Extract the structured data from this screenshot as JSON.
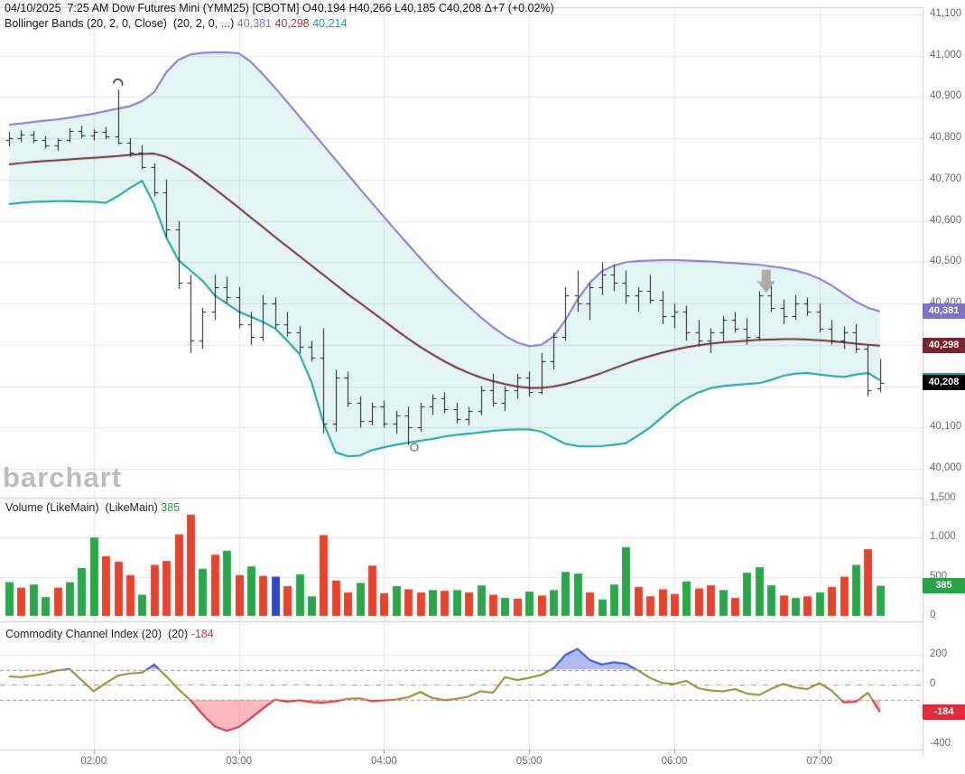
{
  "header": {
    "datetime": "04/10/2025  7:25 AM",
    "instrument": "Dow Futures Mini (YMM25) [CBOTM]",
    "ohlc_text": "O40,194 H40,266 L40,185 C40,208",
    "change_text": "Δ+7 (+0.02%)",
    "bollinger_label": "Bollinger Bands (20, 2, 0, Close)  (20, 2, 0, ...)",
    "bollinger_upper": "40,381",
    "bollinger_middle": "40,298",
    "bollinger_lower": "40,214"
  },
  "watermark": "barchart",
  "volume_panel": {
    "label": "Volume (LikeMain)  (LikeMain) ",
    "value": "385"
  },
  "cci_panel": {
    "label": "Commodity Channel Index (20)  (20) ",
    "value": "-184"
  },
  "axes": {
    "price": {
      "min": 40000,
      "max": 41100,
      "step": 100,
      "visible_ticks": [
        {
          "v": 41100,
          "label": "41,100"
        },
        {
          "v": 41000,
          "label": "41,000"
        },
        {
          "v": 40900,
          "label": "40,900"
        },
        {
          "v": 40800,
          "label": "40,800"
        },
        {
          "v": 40700,
          "label": "40,700"
        },
        {
          "v": 40600,
          "label": "40,600"
        },
        {
          "v": 40500,
          "label": "40,500"
        },
        {
          "v": 40400,
          "label": "40,400"
        },
        {
          "v": 40100,
          "label": "40,100"
        },
        {
          "v": 40000,
          "label": "40,000"
        }
      ]
    },
    "volume": {
      "ticks": [
        {
          "v": 1500,
          "label": "1,500"
        },
        {
          "v": 1000,
          "label": "1,000"
        },
        {
          "v": 500,
          "label": "500"
        },
        {
          "v": 0,
          "label": "0"
        }
      ]
    },
    "cci": {
      "ticks": [
        {
          "v": 200,
          "label": "200"
        },
        {
          "v": 0,
          "label": "0"
        },
        {
          "v": -400,
          "label": "-400"
        }
      ],
      "dashed_levels": [
        100,
        -100
      ],
      "dashdot_level": 0
    },
    "time": {
      "ticks": [
        {
          "label": "02:00",
          "bar": 7
        },
        {
          "label": "03:00",
          "bar": 19
        },
        {
          "label": "04:00",
          "bar": 31
        },
        {
          "label": "05:00",
          "bar": 43
        },
        {
          "label": "06:00",
          "bar": 55
        },
        {
          "label": "07:00",
          "bar": 67
        }
      ]
    }
  },
  "tags": [
    {
      "name": "bb-upper-tag",
      "panel": "price",
      "value": 40381,
      "label": "40,381",
      "bg": "#8172c9"
    },
    {
      "name": "bb-middle-tag",
      "panel": "price",
      "value": 40298,
      "label": "40,298",
      "bg": "#7a222d"
    },
    {
      "name": "bb-lower-tag",
      "panel": "price",
      "value": 40214,
      "label": "40,214",
      "bg": "#17a3a0"
    },
    {
      "name": "last-price-tag",
      "panel": "price",
      "value": 40208,
      "label": "40,208",
      "bg": "#000000"
    },
    {
      "name": "volume-tag",
      "panel": "volume",
      "value": 385,
      "label": "385",
      "bg": "#27a348"
    },
    {
      "name": "cci-tag",
      "panel": "cci",
      "value": -184,
      "label": "-184",
      "bg": "#e12b39"
    }
  ],
  "colors": {
    "bb_upper_line": "#8379cb",
    "bb_middle_line": "#702f35",
    "bb_lower_line": "#16a3a2",
    "bb_fill": "rgba(24,166,166,0.12)",
    "ohlc_bar": "#1f1f1f",
    "vol_up": "#2aa74a",
    "vol_down": "#e8432c",
    "vol_neutral": "#2b49c9",
    "cci_line": "#8a8a28",
    "cci_above": "#3b57d0",
    "cci_below": "#e03040",
    "cci_fill_above": "rgba(85,115,225,0.48)",
    "cci_fill_below": "rgba(240,85,95,0.40)",
    "grid": "#e7e7e7",
    "separator": "#cccccc",
    "marker_gray": "#aaaaaa"
  },
  "chart_data": {
    "type": "ohlc-multi-panel",
    "title": "Dow Futures Mini (YMM25) 5-minute bars with Bollinger Bands, Volume, CCI",
    "start_time": "01:25",
    "interval_minutes": 5,
    "bar_count": 73,
    "price_axis_range": [
      40000,
      41100
    ],
    "ohlc": [
      [
        40795,
        40815,
        40780,
        40800
      ],
      [
        40800,
        40820,
        40790,
        40810
      ],
      [
        40810,
        40818,
        40788,
        40795
      ],
      [
        40795,
        40805,
        40775,
        40782
      ],
      [
        40782,
        40800,
        40770,
        40795
      ],
      [
        40795,
        40825,
        40790,
        40818
      ],
      [
        40818,
        40830,
        40800,
        40808
      ],
      [
        40808,
        40822,
        40795,
        40815
      ],
      [
        40815,
        40828,
        40798,
        40805
      ],
      [
        40805,
        40918,
        40785,
        40790
      ],
      [
        40790,
        40800,
        40755,
        40765
      ],
      [
        40765,
        40784,
        40725,
        40730
      ],
      [
        40730,
        40740,
        40660,
        40670
      ],
      [
        40670,
        40700,
        40560,
        40580
      ],
      [
        40580,
        40600,
        40435,
        40450
      ],
      [
        40450,
        40470,
        40280,
        40310
      ],
      [
        40310,
        40390,
        40290,
        40380
      ],
      [
        40380,
        40470,
        40360,
        40440
      ],
      [
        40440,
        40465,
        40400,
        40415
      ],
      [
        40415,
        40440,
        40340,
        40350
      ],
      [
        40350,
        40380,
        40300,
        40320
      ],
      [
        40320,
        40420,
        40310,
        40400
      ],
      [
        40400,
        40415,
        40340,
        40350
      ],
      [
        40350,
        40380,
        40320,
        40330
      ],
      [
        40330,
        40345,
        40280,
        40295
      ],
      [
        40295,
        40310,
        40260,
        40270
      ],
      [
        40270,
        40340,
        40085,
        40110
      ],
      [
        40110,
        40240,
        40090,
        40220
      ],
      [
        40220,
        40235,
        40150,
        40160
      ],
      [
        40160,
        40175,
        40100,
        40115
      ],
      [
        40115,
        40160,
        40105,
        40150
      ],
      [
        40150,
        40165,
        40100,
        40110
      ],
      [
        40110,
        40140,
        40085,
        40130
      ],
      [
        40130,
        40150,
        40057,
        40100
      ],
      [
        40100,
        40160,
        40090,
        40150
      ],
      [
        40150,
        40180,
        40130,
        40170
      ],
      [
        40170,
        40185,
        40135,
        40145
      ],
      [
        40145,
        40160,
        40110,
        40120
      ],
      [
        40120,
        40150,
        40105,
        40140
      ],
      [
        40140,
        40200,
        40130,
        40190
      ],
      [
        40190,
        40230,
        40150,
        40160
      ],
      [
        40160,
        40200,
        40140,
        40190
      ],
      [
        40190,
        40230,
        40170,
        40220
      ],
      [
        40220,
        40235,
        40175,
        40185
      ],
      [
        40185,
        40280,
        40180,
        40260
      ],
      [
        40260,
        40330,
        40240,
        40320
      ],
      [
        40320,
        40440,
        40310,
        40420
      ],
      [
        40420,
        40480,
        40380,
        40400
      ],
      [
        40400,
        40450,
        40360,
        40440
      ],
      [
        40440,
        40500,
        40420,
        40470
      ],
      [
        40470,
        40495,
        40430,
        40450
      ],
      [
        40450,
        40480,
        40400,
        40420
      ],
      [
        40420,
        40440,
        40380,
        40430
      ],
      [
        40430,
        40470,
        40400,
        40410
      ],
      [
        40410,
        40430,
        40350,
        40370
      ],
      [
        40370,
        40400,
        40340,
        40380
      ],
      [
        40380,
        40395,
        40310,
        40330
      ],
      [
        40330,
        40360,
        40295,
        40310
      ],
      [
        40310,
        40340,
        40280,
        40330
      ],
      [
        40330,
        40370,
        40310,
        40360
      ],
      [
        40360,
        40380,
        40330,
        40340
      ],
      [
        40340,
        40365,
        40300,
        40320
      ],
      [
        40320,
        40430,
        40310,
        40420
      ],
      [
        40420,
        40445,
        40380,
        40390
      ],
      [
        40390,
        40410,
        40350,
        40370
      ],
      [
        40370,
        40420,
        40360,
        40400
      ],
      [
        40400,
        40415,
        40370,
        40380
      ],
      [
        40380,
        40400,
        40330,
        40340
      ],
      [
        40340,
        40360,
        40300,
        40310
      ],
      [
        40310,
        40345,
        40290,
        40330
      ],
      [
        40330,
        40350,
        40280,
        40290
      ],
      [
        40290,
        40300,
        40175,
        40190
      ],
      [
        40194,
        40266,
        40185,
        40208
      ]
    ],
    "bollinger": {
      "upper": [
        40833,
        40836,
        40840,
        40843,
        40846,
        40850,
        40855,
        40860,
        40866,
        40872,
        40878,
        40890,
        40912,
        40960,
        40990,
        41003,
        41007,
        41008,
        41008,
        41006,
        40985,
        40955,
        40922,
        40888,
        40853,
        40818,
        40783,
        40748,
        40713,
        40678,
        40644,
        40610,
        40576,
        40543,
        40510,
        40478,
        40448,
        40420,
        40393,
        40367,
        40343,
        40322,
        40306,
        40297,
        40300,
        40320,
        40360,
        40410,
        40450,
        40478,
        40492,
        40500,
        40503,
        40504,
        40505,
        40505,
        40504,
        40503,
        40502,
        40500,
        40498,
        40496,
        40494,
        40490,
        40486,
        40480,
        40472,
        40460,
        40444,
        40424,
        40405,
        40390,
        40381
      ],
      "middle": [
        40737,
        40740,
        40743,
        40745,
        40747,
        40749,
        40751,
        40753,
        40755,
        40757,
        40760,
        40762,
        40763,
        40755,
        40740,
        40722,
        40700,
        40678,
        40655,
        40632,
        40608,
        40585,
        40561,
        40538,
        40515,
        40492,
        40469,
        40446,
        40423,
        40402,
        40380,
        40358,
        40336,
        40315,
        40295,
        40277,
        40260,
        40245,
        40232,
        40221,
        40212,
        40205,
        40199,
        40196,
        40196,
        40199,
        40205,
        40213,
        40222,
        40232,
        40243,
        40254,
        40264,
        40273,
        40281,
        40288,
        40294,
        40299,
        40303,
        40306,
        40308,
        40310,
        40312,
        40313,
        40314,
        40314,
        40313,
        40311,
        40309,
        40306,
        40303,
        40300,
        40298
      ],
      "lower": [
        40641,
        40644,
        40646,
        40647,
        40648,
        40648,
        40647,
        40646,
        40644,
        40660,
        40680,
        40697,
        40640,
        40560,
        40505,
        40480,
        40455,
        40420,
        40400,
        40380,
        40368,
        40355,
        40340,
        40310,
        40278,
        40210,
        40110,
        40040,
        40030,
        40032,
        40045,
        40052,
        40058,
        40063,
        40068,
        40072,
        40078,
        40082,
        40085,
        40088,
        40092,
        40094,
        40095,
        40095,
        40090,
        40075,
        40060,
        40055,
        40054,
        40055,
        40058,
        40062,
        40080,
        40100,
        40125,
        40150,
        40170,
        40185,
        40195,
        40200,
        40203,
        40205,
        40207,
        40215,
        40225,
        40230,
        40232,
        40228,
        40225,
        40222,
        40228,
        40232,
        40214
      ]
    },
    "volume": {
      "values": [
        430,
        360,
        400,
        240,
        360,
        430,
        610,
        1000,
        760,
        690,
        520,
        270,
        650,
        700,
        1040,
        1290,
        600,
        780,
        830,
        520,
        630,
        510,
        500,
        380,
        530,
        250,
        1030,
        450,
        300,
        420,
        640,
        290,
        380,
        340,
        300,
        330,
        320,
        330,
        300,
        390,
        270,
        230,
        220,
        310,
        260,
        330,
        560,
        540,
        300,
        210,
        400,
        875,
        370,
        250,
        340,
        280,
        440,
        350,
        390,
        330,
        230,
        550,
        620,
        390,
        260,
        230,
        250,
        300,
        370,
        500,
        650,
        850,
        385
      ],
      "colors": [
        "g",
        "r",
        "g",
        "g",
        "r",
        "g",
        "g",
        "g",
        "r",
        "r",
        "r",
        "g",
        "r",
        "r",
        "r",
        "r",
        "g",
        "r",
        "g",
        "r",
        "g",
        "r",
        "b",
        "r",
        "g",
        "g",
        "r",
        "r",
        "r",
        "g",
        "r",
        "r",
        "g",
        "r",
        "r",
        "g",
        "r",
        "g",
        "r",
        "g",
        "r",
        "g",
        "r",
        "g",
        "r",
        "g",
        "g",
        "g",
        "r",
        "g",
        "g",
        "g",
        "r",
        "r",
        "r",
        "r",
        "g",
        "r",
        "r",
        "g",
        "r",
        "g",
        "g",
        "g",
        "r",
        "g",
        "r",
        "g",
        "r",
        "r",
        "g",
        "r",
        "g"
      ]
    },
    "cci": [
      55,
      50,
      60,
      75,
      95,
      105,
      30,
      -45,
      10,
      60,
      75,
      80,
      135,
      55,
      -30,
      -105,
      -200,
      -280,
      -310,
      -285,
      -225,
      -160,
      -100,
      -115,
      -105,
      -118,
      -122,
      -112,
      -95,
      -92,
      -110,
      -106,
      -100,
      -85,
      -50,
      -90,
      -105,
      -95,
      -80,
      -45,
      -55,
      50,
      30,
      45,
      65,
      110,
      200,
      240,
      165,
      135,
      150,
      140,
      95,
      45,
      10,
      5,
      25,
      -25,
      -40,
      -45,
      -30,
      -60,
      -70,
      -30,
      5,
      -20,
      -30,
      10,
      -40,
      -120,
      -115,
      -55,
      -184
    ],
    "markers": [
      {
        "shape": "arc-hook",
        "bar": 9,
        "price": 40932
      },
      {
        "shape": "open-circle",
        "bar": 33.5,
        "price": 40052
      },
      {
        "shape": "down-arrow",
        "bar": 62.6,
        "price": 40482
      }
    ]
  }
}
